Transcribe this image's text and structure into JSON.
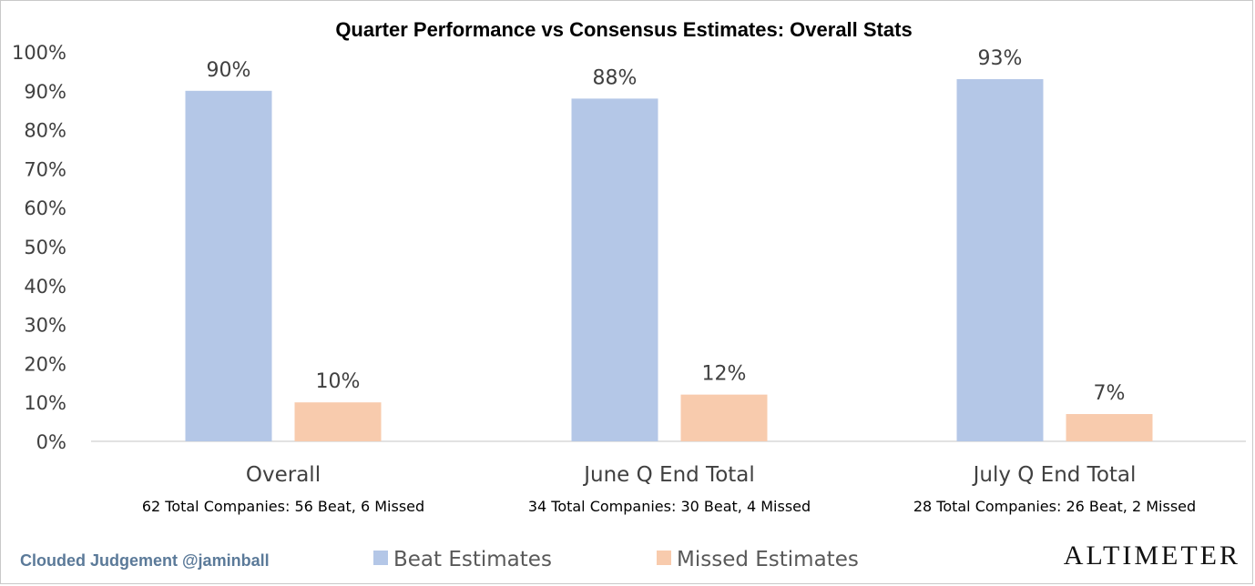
{
  "chart_data": {
    "type": "bar",
    "title": "Quarter Performance vs Consensus Estimates: Overall Stats",
    "categories": [
      "Overall",
      "June Q End Total",
      "July Q End Total"
    ],
    "category_subtitles": [
      "62 Total Companies: 56 Beat, 6 Missed",
      "34 Total Companies: 30 Beat, 4 Missed",
      "28 Total Companies: 26 Beat, 2 Missed"
    ],
    "series": [
      {
        "name": "Beat Estimates",
        "values": [
          90,
          88,
          93
        ],
        "labels": [
          "90%",
          "88%",
          "93%"
        ],
        "color": "#b4c7e7"
      },
      {
        "name": "Missed Estimates",
        "values": [
          10,
          12,
          7
        ],
        "labels": [
          "10%",
          "12%",
          "7%"
        ],
        "color": "#f8cbad"
      }
    ],
    "ylim": [
      0,
      100
    ],
    "yticks": [
      "0%",
      "10%",
      "20%",
      "30%",
      "40%",
      "50%",
      "60%",
      "70%",
      "80%",
      "90%",
      "100%"
    ],
    "grid": false,
    "legend_position": "bottom"
  },
  "footer": {
    "credit": "Clouded Judgement @jaminball",
    "brand": "ALTIMETER"
  }
}
